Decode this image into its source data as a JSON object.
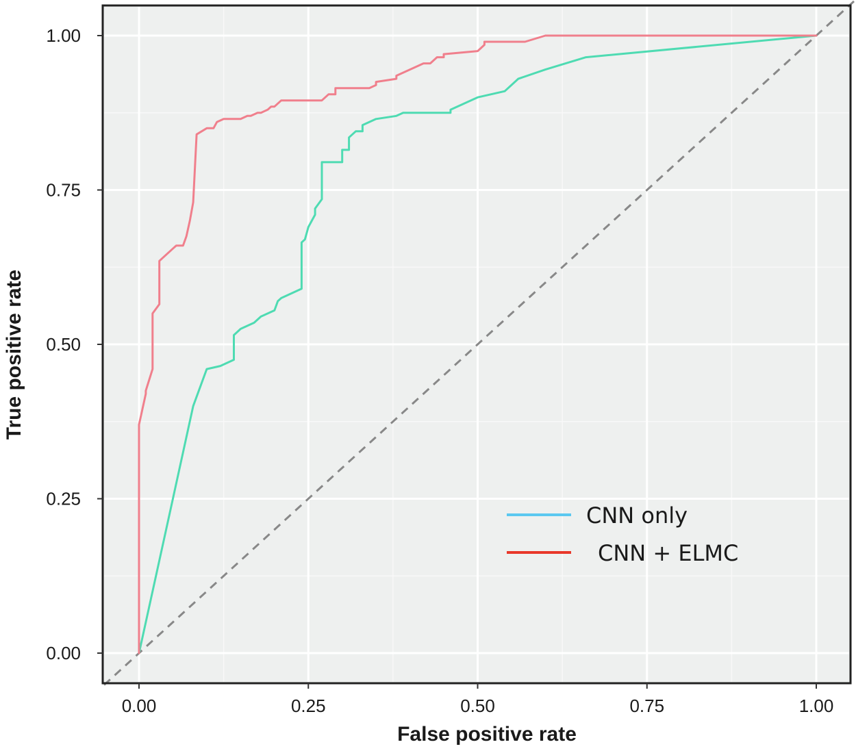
{
  "chart_data": {
    "type": "line",
    "title": "",
    "xlabel": "False positive rate",
    "ylabel": "True positive rate",
    "xlim": [
      -0.1,
      1.1
    ],
    "ylim": [
      -0.1,
      1.1
    ],
    "x_ticks": [
      0,
      0.25,
      0.5,
      0.75,
      1
    ],
    "y_ticks": [
      0,
      0.25,
      0.5,
      0.75,
      1
    ],
    "x_tick_labels": [
      "0.00",
      "0.25",
      "0.50",
      "0.75",
      "1.00"
    ],
    "y_tick_labels": [
      "0.00",
      "0.25",
      "0.50",
      "0.75",
      "1.00"
    ],
    "grid": true,
    "legend_position": "bottom-right",
    "diagonal_reference": {
      "x": [
        -0.1,
        1.1
      ],
      "y": [
        -0.1,
        1.1
      ],
      "color": "#888888",
      "style": "dashed"
    },
    "series": [
      {
        "name": "CNN only",
        "line_color": "#4edbb2",
        "legend_color": "#5bc8f0",
        "x": [
          0.0,
          0.04,
          0.08,
          0.1,
          0.12,
          0.14,
          0.14,
          0.15,
          0.17,
          0.18,
          0.2,
          0.205,
          0.21,
          0.24,
          0.24,
          0.245,
          0.25,
          0.26,
          0.26,
          0.27,
          0.27,
          0.3,
          0.3,
          0.31,
          0.31,
          0.32,
          0.33,
          0.33,
          0.35,
          0.35,
          0.38,
          0.39,
          0.43,
          0.46,
          0.46,
          0.48,
          0.5,
          0.54,
          0.56,
          0.6,
          0.66,
          1.0
        ],
        "y": [
          0.0,
          0.2,
          0.4,
          0.46,
          0.465,
          0.475,
          0.515,
          0.525,
          0.535,
          0.545,
          0.555,
          0.57,
          0.575,
          0.59,
          0.665,
          0.67,
          0.69,
          0.71,
          0.72,
          0.735,
          0.795,
          0.795,
          0.815,
          0.815,
          0.835,
          0.845,
          0.845,
          0.855,
          0.865,
          0.865,
          0.87,
          0.875,
          0.875,
          0.875,
          0.88,
          0.89,
          0.9,
          0.91,
          0.93,
          0.945,
          0.965,
          1.0
        ]
      },
      {
        "name": "CNN + ELMC",
        "line_color": "#f07f8c",
        "legend_color": "#e8382a",
        "x": [
          0.0,
          0.0,
          0.01,
          0.01,
          0.02,
          0.02,
          0.03,
          0.03,
          0.035,
          0.05,
          0.055,
          0.065,
          0.07,
          0.075,
          0.08,
          0.085,
          0.1,
          0.11,
          0.115,
          0.125,
          0.15,
          0.16,
          0.165,
          0.175,
          0.18,
          0.19,
          0.195,
          0.2,
          0.21,
          0.22,
          0.27,
          0.28,
          0.29,
          0.29,
          0.34,
          0.35,
          0.35,
          0.38,
          0.38,
          0.4,
          0.42,
          0.43,
          0.44,
          0.45,
          0.45,
          0.5,
          0.51,
          0.51,
          0.52,
          0.54,
          0.57,
          0.6,
          1.0
        ],
        "y": [
          0.0,
          0.37,
          0.42,
          0.425,
          0.46,
          0.55,
          0.565,
          0.635,
          0.64,
          0.655,
          0.66,
          0.66,
          0.675,
          0.7,
          0.73,
          0.84,
          0.85,
          0.85,
          0.86,
          0.865,
          0.865,
          0.87,
          0.87,
          0.875,
          0.875,
          0.88,
          0.885,
          0.885,
          0.895,
          0.895,
          0.895,
          0.905,
          0.905,
          0.915,
          0.915,
          0.92,
          0.925,
          0.93,
          0.935,
          0.945,
          0.955,
          0.955,
          0.965,
          0.965,
          0.97,
          0.975,
          0.985,
          0.99,
          0.99,
          0.99,
          0.99,
          1.0,
          1.0
        ]
      }
    ]
  }
}
